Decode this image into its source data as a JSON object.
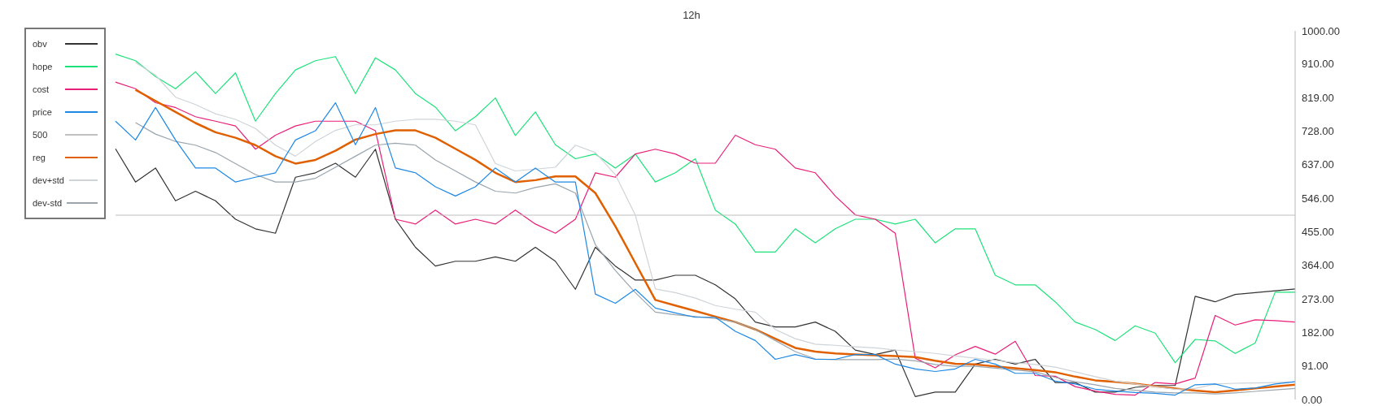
{
  "chart_data": {
    "type": "line",
    "title": "12h",
    "categories": [
      null,
      null,
      null,
      null,
      null,
      null,
      null,
      null,
      null,
      null,
      null,
      null,
      null,
      null,
      null,
      null,
      null,
      null,
      null,
      null,
      null,
      null,
      null,
      null,
      null,
      null,
      null,
      null,
      null,
      null,
      null,
      null,
      null,
      null,
      null,
      null,
      null,
      null,
      null,
      null,
      null,
      null,
      null,
      null,
      null,
      null,
      null,
      null,
      null,
      null,
      null,
      null,
      null,
      null,
      null,
      null,
      null,
      null,
      null,
      null
    ],
    "series": [
      {
        "name": "obv",
        "color": "#333333",
        "values": [
          680,
          590,
          628,
          539,
          565,
          539,
          489,
          463,
          451,
          603,
          615,
          641,
          603,
          679,
          489,
          413,
          362,
          375,
          375,
          387,
          375,
          413,
          375,
          299,
          413,
          362,
          324,
          324,
          337,
          337,
          311,
          273,
          210,
          197,
          197,
          210,
          185,
          134,
          122,
          134,
          8,
          20,
          20,
          96,
          109,
          96,
          109,
          46,
          46,
          20,
          20,
          33,
          38,
          38,
          280,
          265,
          285,
          290,
          295,
          300
        ]
      },
      {
        "name": "hope",
        "color": "#1de27a",
        "values": [
          937,
          919,
          876,
          843,
          889,
          830,
          886,
          755,
          830,
          894,
          919,
          930,
          830,
          927,
          894,
          830,
          793,
          729,
          767,
          818,
          716,
          780,
          691,
          653,
          666,
          628,
          666,
          590,
          615,
          653,
          514,
          476,
          400,
          400,
          463,
          425,
          463,
          489,
          489,
          476,
          489,
          425,
          463,
          463,
          337,
          311,
          311,
          265,
          210,
          190,
          160,
          200,
          180,
          100,
          163,
          159,
          125,
          153,
          291,
          291
        ]
      },
      {
        "name": "cost",
        "color": "#e91e78",
        "values": [
          861,
          843,
          805,
          792,
          767,
          755,
          742,
          679,
          717,
          742,
          755,
          755,
          755,
          729,
          489,
          476,
          514,
          476,
          489,
          476,
          514,
          476,
          451,
          489,
          615,
          603,
          666,
          679,
          666,
          641,
          641,
          717,
          691,
          679,
          628,
          615,
          552,
          501,
          489,
          451,
          112,
          86,
          121,
          144,
          123,
          158,
          65,
          63,
          35,
          23,
          14,
          12,
          46,
          42,
          58,
          228,
          202,
          216,
          214,
          210
        ]
      },
      {
        "name": "price",
        "color": "#1e88e5",
        "values": [
          755,
          704,
          792,
          704,
          628,
          628,
          590,
          603,
          615,
          704,
          729,
          805,
          691,
          792,
          628,
          615,
          577,
          552,
          577,
          628,
          590,
          628,
          590,
          590,
          286,
          261,
          299,
          248,
          235,
          223,
          223,
          185,
          160,
          109,
          122,
          109,
          109,
          122,
          122,
          96,
          83,
          76,
          83,
          109,
          96,
          71,
          71,
          50,
          42,
          28,
          23,
          19,
          17,
          12,
          40,
          42,
          28,
          31,
          42,
          48
        ]
      },
      {
        "name": "500",
        "color": "#c0c0c0",
        "values": [
          500,
          500,
          500,
          500,
          500,
          500,
          500,
          500,
          500,
          500,
          500,
          500,
          500,
          500,
          500,
          500,
          500,
          500,
          500,
          500,
          500,
          500,
          500,
          500,
          500,
          500,
          500,
          500,
          500,
          500,
          500,
          500,
          500,
          500,
          500,
          500,
          500,
          500,
          500,
          500,
          500,
          500,
          500,
          500,
          500,
          500,
          500,
          500,
          500,
          500,
          500,
          500,
          500,
          500,
          500,
          500,
          500,
          500,
          500,
          500
        ]
      },
      {
        "name": "reg",
        "color": "#e06000",
        "values": [
          null,
          840,
          810,
          780,
          750,
          725,
          710,
          690,
          660,
          640,
          650,
          675,
          705,
          720,
          730,
          730,
          710,
          680,
          650,
          615,
          590,
          595,
          605,
          605,
          560,
          470,
          370,
          270,
          255,
          240,
          225,
          210,
          190,
          165,
          140,
          130,
          125,
          122,
          120,
          118,
          115,
          105,
          97,
          95,
          90,
          85,
          80,
          74,
          62,
          52,
          48,
          43,
          36,
          30,
          24,
          20,
          25,
          30,
          35,
          40
        ]
      },
      {
        "name": "dev+std",
        "color": "#cfd4d8",
        "values": [
          null,
          914,
          880,
          820,
          800,
          775,
          760,
          735,
          690,
          660,
          700,
          730,
          745,
          745,
          755,
          760,
          760,
          755,
          745,
          640,
          620,
          625,
          630,
          690,
          670,
          610,
          500,
          300,
          290,
          275,
          255,
          245,
          237,
          190,
          165,
          150,
          147,
          143,
          140,
          134,
          130,
          125,
          118,
          112,
          106,
          100,
          95,
          88,
          75,
          62,
          50,
          42,
          35,
          28,
          30,
          42,
          44,
          45,
          46,
          48
        ]
      },
      {
        "name": "dev-std",
        "color": "#9aa5ad",
        "values": [
          null,
          751,
          720,
          700,
          690,
          670,
          640,
          610,
          590,
          590,
          600,
          630,
          660,
          690,
          695,
          690,
          650,
          620,
          590,
          565,
          560,
          575,
          585,
          560,
          420,
          350,
          290,
          237,
          230,
          225,
          220,
          210,
          190,
          160,
          130,
          110,
          108,
          108,
          108,
          110,
          105,
          95,
          90,
          90,
          85,
          80,
          75,
          60,
          48,
          40,
          30,
          25,
          20,
          18,
          18,
          15,
          18,
          22,
          26,
          30
        ]
      }
    ],
    "ylim": [
      0,
      1000
    ],
    "yticks": [
      {
        "value": 0,
        "label": "0.00"
      },
      {
        "value": 91,
        "label": "91.00"
      },
      {
        "value": 182,
        "label": "182.00"
      },
      {
        "value": 273,
        "label": "273.00"
      },
      {
        "value": 364,
        "label": "364.00"
      },
      {
        "value": 455,
        "label": "455.00"
      },
      {
        "value": 546,
        "label": "546.00"
      },
      {
        "value": 637,
        "label": "637.00"
      },
      {
        "value": 728,
        "label": "728.00"
      },
      {
        "value": 819,
        "label": "819.00"
      },
      {
        "value": 910,
        "label": "910.00"
      },
      {
        "value": 1000,
        "label": "1000.00"
      }
    ],
    "tick_labels": "y",
    "grid": false,
    "legend": "top left",
    "marker": "none",
    "line_style": "solid"
  }
}
